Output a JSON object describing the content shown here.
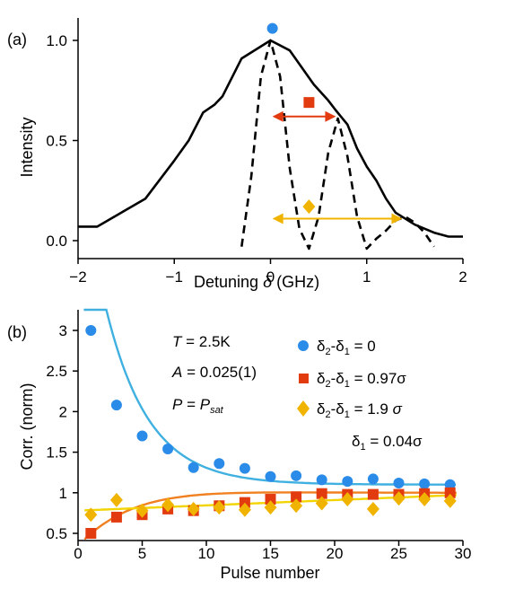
{
  "chart_data": [
    {
      "type": "line",
      "panel_label": "(a)",
      "xlabel": "Detuning δ (GHz)",
      "ylabel": "Intensity",
      "xlim": [
        -2,
        2
      ],
      "ylim": [
        -0.05,
        1.1
      ],
      "xticks": [
        -2,
        -1,
        0,
        1,
        2
      ],
      "xtick_labels": [
        "−2",
        "−1",
        "0",
        "1",
        "2"
      ],
      "yticks": [
        0,
        0.5,
        1
      ],
      "ytick_labels": [
        "0.0",
        "0.5",
        "1.0"
      ],
      "series": [
        {
          "style": "solid",
          "x": [
            -2,
            -1.8,
            -1.55,
            -1.3,
            -1.0,
            -0.85,
            -0.7,
            -0.58,
            -0.5,
            -0.3,
            0,
            0.2,
            0.45,
            0.6,
            0.68,
            0.8,
            0.9,
            1.0,
            1.1,
            1.2,
            1.3,
            1.5,
            1.7,
            1.85,
            2.0
          ],
          "y": [
            0.07,
            0.07,
            0.14,
            0.21,
            0.4,
            0.5,
            0.64,
            0.68,
            0.72,
            0.91,
            1.0,
            0.95,
            0.78,
            0.7,
            0.65,
            0.58,
            0.46,
            0.37,
            0.3,
            0.21,
            0.14,
            0.08,
            0.04,
            0.02,
            0.02
          ]
        },
        {
          "style": "dashed",
          "x": [
            -0.3,
            -0.2,
            -0.1,
            0,
            0.1,
            0.2,
            0.3,
            0.4,
            0.5,
            0.6,
            0.7,
            0.8,
            0.9,
            1.0,
            1.1,
            1.2,
            1.3,
            1.4,
            1.5,
            1.6,
            1.7
          ],
          "y": [
            -0.03,
            0.32,
            0.82,
            1.0,
            0.82,
            0.36,
            0.06,
            -0.04,
            0.12,
            0.44,
            0.61,
            0.42,
            0.12,
            -0.04,
            0.01,
            0.05,
            0.1,
            0.12,
            0.09,
            0.04,
            -0.03
          ]
        }
      ],
      "markers": [
        {
          "shape": "circle",
          "x": 0.02,
          "y": 1.06,
          "color": "#2a8be8"
        },
        {
          "shape": "square",
          "x": 0.4,
          "y": 0.69,
          "color": "#e33b10"
        },
        {
          "shape": "diamond",
          "x": 0.4,
          "y": 0.17,
          "color": "#f0b400"
        }
      ],
      "arrows": [
        {
          "x1": 0.02,
          "x2": 0.68,
          "y": 0.62,
          "color": "#e33b10"
        },
        {
          "x1": 0.02,
          "x2": 1.37,
          "y": 0.11,
          "color": "#f0b400"
        }
      ]
    },
    {
      "type": "scatter",
      "panel_label": "(b)",
      "xlabel": "Pulse number",
      "ylabel": "Corr. (norm)",
      "xlim": [
        0,
        30
      ],
      "ylim": [
        0.4,
        3.25
      ],
      "xticks": [
        0,
        5,
        10,
        15,
        20,
        25,
        30
      ],
      "yticks": [
        0.5,
        1,
        1.5,
        2,
        2.5,
        3
      ],
      "ytick_labels": [
        "0.5",
        "1",
        "1.5",
        "2",
        "2.5",
        "3"
      ],
      "annotations": [
        {
          "lines": [
            "T = 2.5K",
            "A = 0.025(1)",
            "P = Psat"
          ]
        },
        {
          "text": "δ1 = 0.04σ"
        }
      ],
      "series": [
        {
          "name": "δ2-δ1 = 0",
          "marker": "circle",
          "color": "#2a8be8",
          "fit_color": "#3fb0e0",
          "x": [
            1,
            3,
            5,
            7,
            9,
            11,
            13,
            15,
            17,
            19,
            21,
            23,
            25,
            27,
            29
          ],
          "y": [
            3.0,
            2.08,
            1.7,
            1.54,
            1.31,
            1.36,
            1.3,
            1.2,
            1.21,
            1.16,
            1.14,
            1.17,
            1.12,
            1.11,
            1.1
          ],
          "fit": [
            1.1,
            4.18,
            0.3
          ]
        },
        {
          "name": "δ2-δ1 = 0.97σ",
          "marker": "square",
          "color": "#e33b10",
          "fit_color": "#f08020",
          "x": [
            1,
            3,
            5,
            7,
            9,
            11,
            13,
            15,
            17,
            19,
            21,
            23,
            25,
            27,
            29
          ],
          "y": [
            0.5,
            0.7,
            0.73,
            0.8,
            0.78,
            0.84,
            0.88,
            0.92,
            0.95,
            0.99,
            0.98,
            0.98,
            0.98,
            0.99,
            1.0
          ],
          "fit": [
            1.0,
            0.65,
            0.25
          ]
        },
        {
          "name": "δ2-δ1 = 1.9 σ",
          "marker": "diamond",
          "color": "#f0b400",
          "fit_color": "#f2d400",
          "x": [
            1,
            3,
            5,
            7,
            9,
            11,
            13,
            15,
            17,
            19,
            21,
            23,
            25,
            27,
            29
          ],
          "y": [
            0.73,
            0.91,
            0.78,
            0.85,
            0.8,
            0.82,
            0.79,
            0.82,
            0.84,
            0.87,
            0.92,
            0.8,
            0.93,
            0.92,
            0.9
          ],
          "fit": [
            0.78,
            0.0065
          ]
        }
      ]
    }
  ],
  "text": {
    "panel_a": "(a)",
    "panel_b": "(b)",
    "a_xlabel_main": "Detuning ",
    "a_xlabel_delta": "δ",
    "a_xlabel_unit": " (GHz)",
    "a_ylabel": "Intensity",
    "b_xlabel": "Pulse number",
    "b_ylabel": "Corr. (norm)",
    "ann_T_var": "T",
    "ann_T_val": " = 2.5K",
    "ann_A_var": "A",
    "ann_A_val": " = 0.025(1)",
    "ann_P_var": "P",
    "ann_P_eq": " = ",
    "ann_P_sym": "P",
    "ann_P_sub": "sat",
    "ann_d1": "δ",
    "ann_d1_sub": "1",
    "ann_d1_val": " = 0.04σ",
    "leg1_a": "δ",
    "leg1_a_sub": "2",
    "leg1_b": "-δ",
    "leg1_b_sub": "1",
    "leg1_val": " = 0",
    "leg2_a": "δ",
    "leg2_a_sub": "2",
    "leg2_b": "-δ",
    "leg2_b_sub": "1",
    "leg2_val": " = 0.97σ",
    "leg3_a": "δ",
    "leg3_a_sub": "2",
    "leg3_b": "-δ",
    "leg3_b_sub": "1",
    "leg3_val": " = 1.9 ",
    "leg3_sig": "σ"
  }
}
